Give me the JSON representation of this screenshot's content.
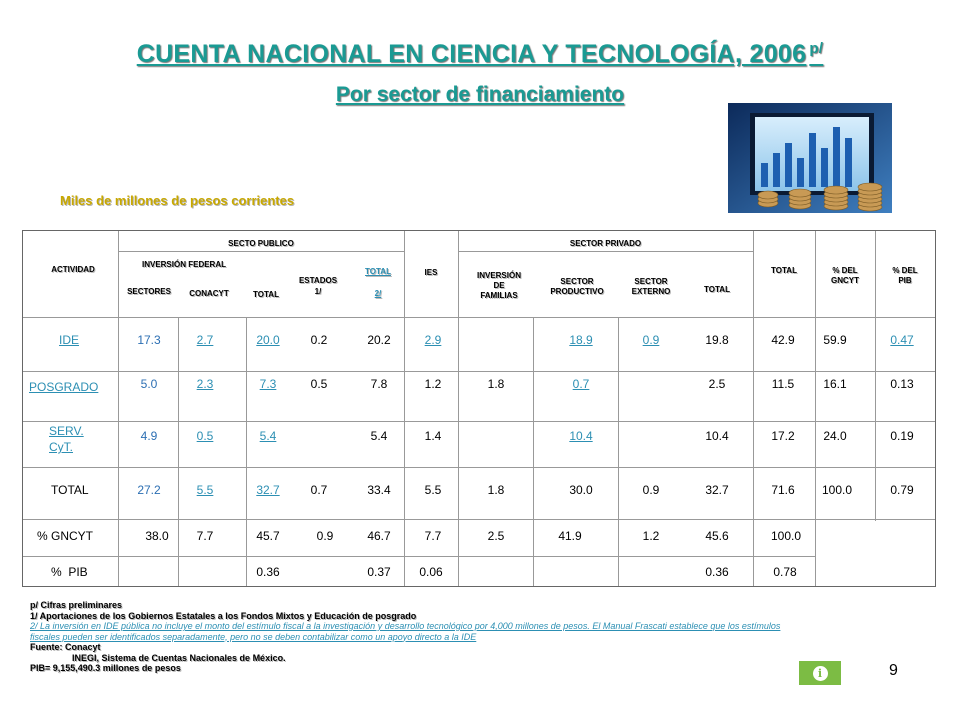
{
  "title": "CUENTA NACIONAL EN CIENCIA Y TECNOLOGÍA, 2006",
  "title_sup": "p/",
  "subtitle": "Por sector de financiamiento",
  "units": "Miles de millones de pesos corrientes",
  "headers": {
    "actividad": "ACTIVIDAD",
    "sector_publico": "SECTO PUBLICO",
    "inversion_federal": "INVERSIÓN FEDERAL",
    "sectores": "SECTORES",
    "conacyt": "CONACYT",
    "total_federal": "TOTAL",
    "estados": "ESTADOS",
    "estados_note": "1/",
    "total_publico": "TOTAL",
    "total_publico_note": "2/",
    "ies": "IES",
    "sector_privado": "SECTOR PRIVADO",
    "inversion_familias_1": "INVERSIÓN",
    "inversion_familias_2": "DE",
    "inversion_familias_3": "FAMILIAS",
    "sector_productivo_1": "SECTOR",
    "sector_productivo_2": "PRODUCTIVO",
    "sector_externo_1": "SECTOR",
    "sector_externo_2": "EXTERNO",
    "total_privado": "TOTAL",
    "total": "TOTAL",
    "pct_gncyt_1": "% DEL",
    "pct_gncyt_2": "GNCYT",
    "pct_pib_1": "% DEL",
    "pct_pib_2": "PIB"
  },
  "rows": [
    {
      "label": "IDE",
      "sectores": "17.3",
      "conacyt": "2.7",
      "total_federal": "20.0",
      "estados": "0.2",
      "total_publico": "20.2",
      "ies": "2.9",
      "familias": "",
      "productivo": "18.9",
      "externo": "0.9",
      "total_privado": "19.8",
      "total": "42.9",
      "pct_gncyt": "59.9",
      "pct_pib": "0.47"
    },
    {
      "label": "POSGRADO",
      "sectores": "5.0",
      "conacyt": "2.3",
      "total_federal": "7.3",
      "estados": "0.5",
      "total_publico": "7.8",
      "ies": "1.2",
      "familias": "1.8",
      "productivo": "0.7",
      "externo": "",
      "total_privado": "2.5",
      "total": "11.5",
      "pct_gncyt": "16.1",
      "pct_pib": "0.13"
    },
    {
      "label_1": "SERV.",
      "label_2": "CyT.",
      "sectores": "4.9",
      "conacyt": "0.5",
      "total_federal": "5.4",
      "estados": "",
      "total_publico": "5.4",
      "ies": "1.4",
      "familias": "",
      "productivo": "10.4",
      "externo": "",
      "total_privado": "10.4",
      "total": "17.2",
      "pct_gncyt": "24.0",
      "pct_pib": "0.19"
    },
    {
      "label": "TOTAL",
      "sectores": "27.2",
      "conacyt": "5.5",
      "total_federal": "32.7",
      "estados": "0.7",
      "total_publico": "33.4",
      "ies": "5.5",
      "familias": "1.8",
      "productivo": "30.0",
      "externo": "0.9",
      "total_privado": "32.7",
      "total": "71.6",
      "pct_gncyt": "100.0",
      "pct_pib": "0.79"
    },
    {
      "label": "% GNCYT",
      "sectores": "38.0",
      "conacyt": "7.7",
      "total_federal": "45.7",
      "estados": "0.9",
      "total_publico": "46.7",
      "ies": "7.7",
      "familias": "2.5",
      "productivo": "41.9",
      "externo": "1.2",
      "total_privado": "45.6",
      "total": "100.0",
      "pct_gncyt": "",
      "pct_pib": ""
    },
    {
      "label": "%  PIB",
      "sectores": "",
      "conacyt": "",
      "total_federal": "0.36",
      "estados": "",
      "total_publico": "0.37",
      "ies": "0.06",
      "familias": "",
      "productivo": "",
      "externo": "",
      "total_privado": "0.36",
      "total": "0.78",
      "pct_gncyt": "",
      "pct_pib": ""
    }
  ],
  "footnotes": {
    "p": "p/ Cifras preliminares",
    "n1": "1/ Aportaciones de los Gobiernos Estatales a los Fondos Mixtos y Educación de posgrado",
    "n2": "2/ La inversión en IDE pública no incluye el monto del estímulo fiscal a la investigación y desarrollo tecnológico por 4,000 millones de pesos. El Manual Frascati establece que los estímulos fiscales pueden ser identificados separadamente, pero no se deben contabilizar como un apoyo directo a la IDE",
    "fuente": "Fuente: Conacyt",
    "inegi": "INEGI, Sistema de Cuentas Nacionales de México.",
    "pib": "PIB= 9,155,490.3 millones de pesos"
  },
  "info_icon": "info-icon",
  "page_number": "9",
  "colors": {
    "title": "#1a9a93",
    "units": "#c8a800",
    "link": "#2c8fb3",
    "info_button": "#7cbc44"
  }
}
